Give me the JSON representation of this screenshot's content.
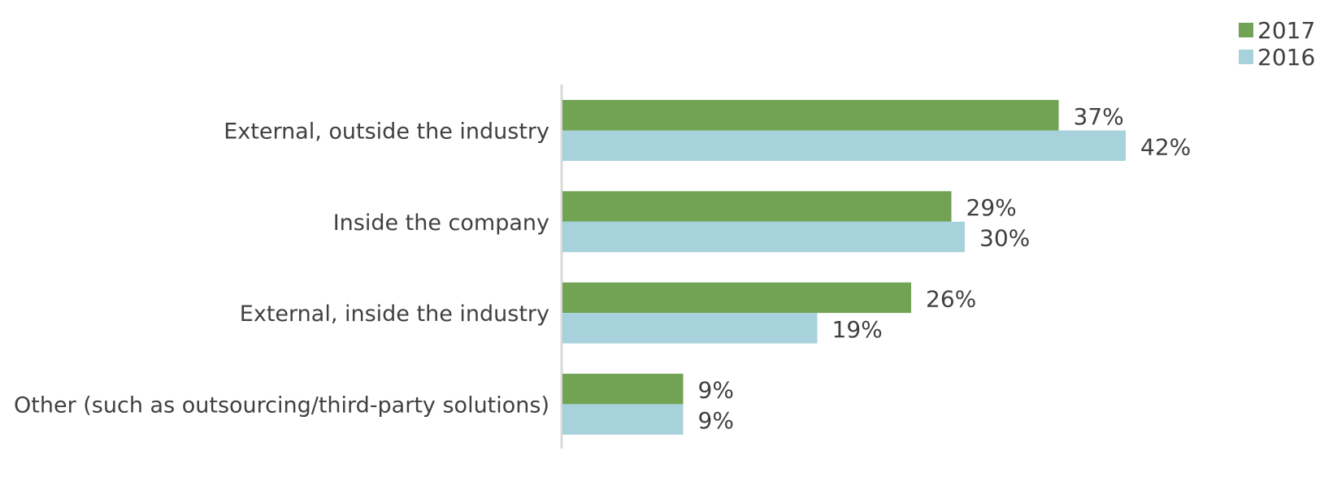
{
  "chart_data": {
    "type": "bar",
    "orientation": "horizontal",
    "categories": [
      "External, outside the industry",
      "Inside the company",
      "External, inside the industry",
      "Other (such as outsourcing/third-party solutions)"
    ],
    "series": [
      {
        "name": "2017",
        "color": "#72a253",
        "values": [
          37,
          29,
          26,
          9
        ],
        "labels": [
          "37%",
          "29%",
          "26%",
          "9%"
        ]
      },
      {
        "name": "2016",
        "color": "#a7d2db",
        "values": [
          42,
          30,
          19,
          9
        ],
        "labels": [
          "42%",
          "30%",
          "19%",
          "9%"
        ]
      }
    ],
    "xlim": [
      0,
      48
    ],
    "value_unit": "%",
    "grid": false,
    "legend_position": "top-right",
    "axis_color": "#d9d9d9"
  }
}
